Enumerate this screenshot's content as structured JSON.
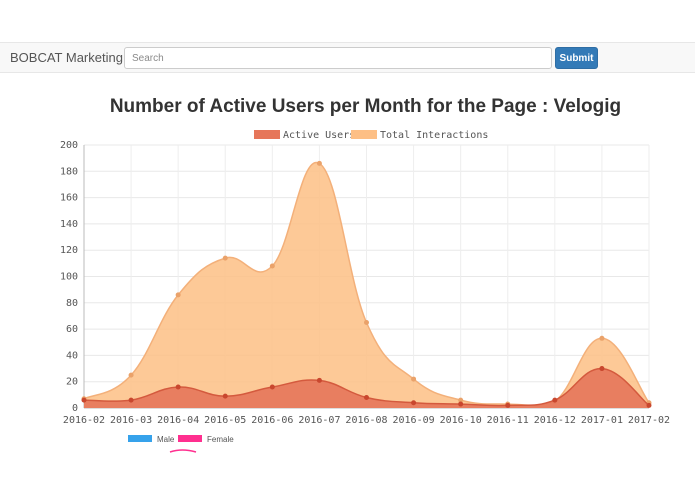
{
  "navbar": {
    "brand": "BOBCAT Marketing",
    "search_placeholder": "Search",
    "search_value": "",
    "submit_label": "Submit"
  },
  "colors": {
    "navbar_bg": "#f8f8f8",
    "submit": "#337ab7",
    "active_users": "#e6765a",
    "total_interactions": "#fdbf85",
    "male": "#36a2eb",
    "female": "#ff2f8f"
  },
  "chart_data": {
    "type": "area",
    "title": "Number of Active Users per Month for the Page : Velogig",
    "xlabel": "",
    "ylabel": "",
    "x": [
      "2016-02",
      "2016-03",
      "2016-04",
      "2016-05",
      "2016-06",
      "2016-07",
      "2016-08",
      "2016-09",
      "2016-10",
      "2016-11",
      "2016-12",
      "2017-01",
      "2017-02"
    ],
    "ylim": [
      0,
      200
    ],
    "yticks": [
      0,
      20,
      40,
      60,
      80,
      100,
      120,
      140,
      160,
      180,
      200
    ],
    "grid": true,
    "legend_position": "top",
    "series": [
      {
        "name": "Active Users",
        "values": [
          6,
          6,
          16,
          9,
          16,
          21,
          8,
          4,
          3,
          2,
          6,
          30,
          2
        ]
      },
      {
        "name": "Total Interactions",
        "values": [
          7,
          25,
          86,
          114,
          108,
          186,
          65,
          22,
          6,
          3,
          5,
          53,
          4
        ]
      }
    ]
  },
  "secondary_legend": [
    {
      "name": "Male"
    },
    {
      "name": "Female"
    }
  ]
}
